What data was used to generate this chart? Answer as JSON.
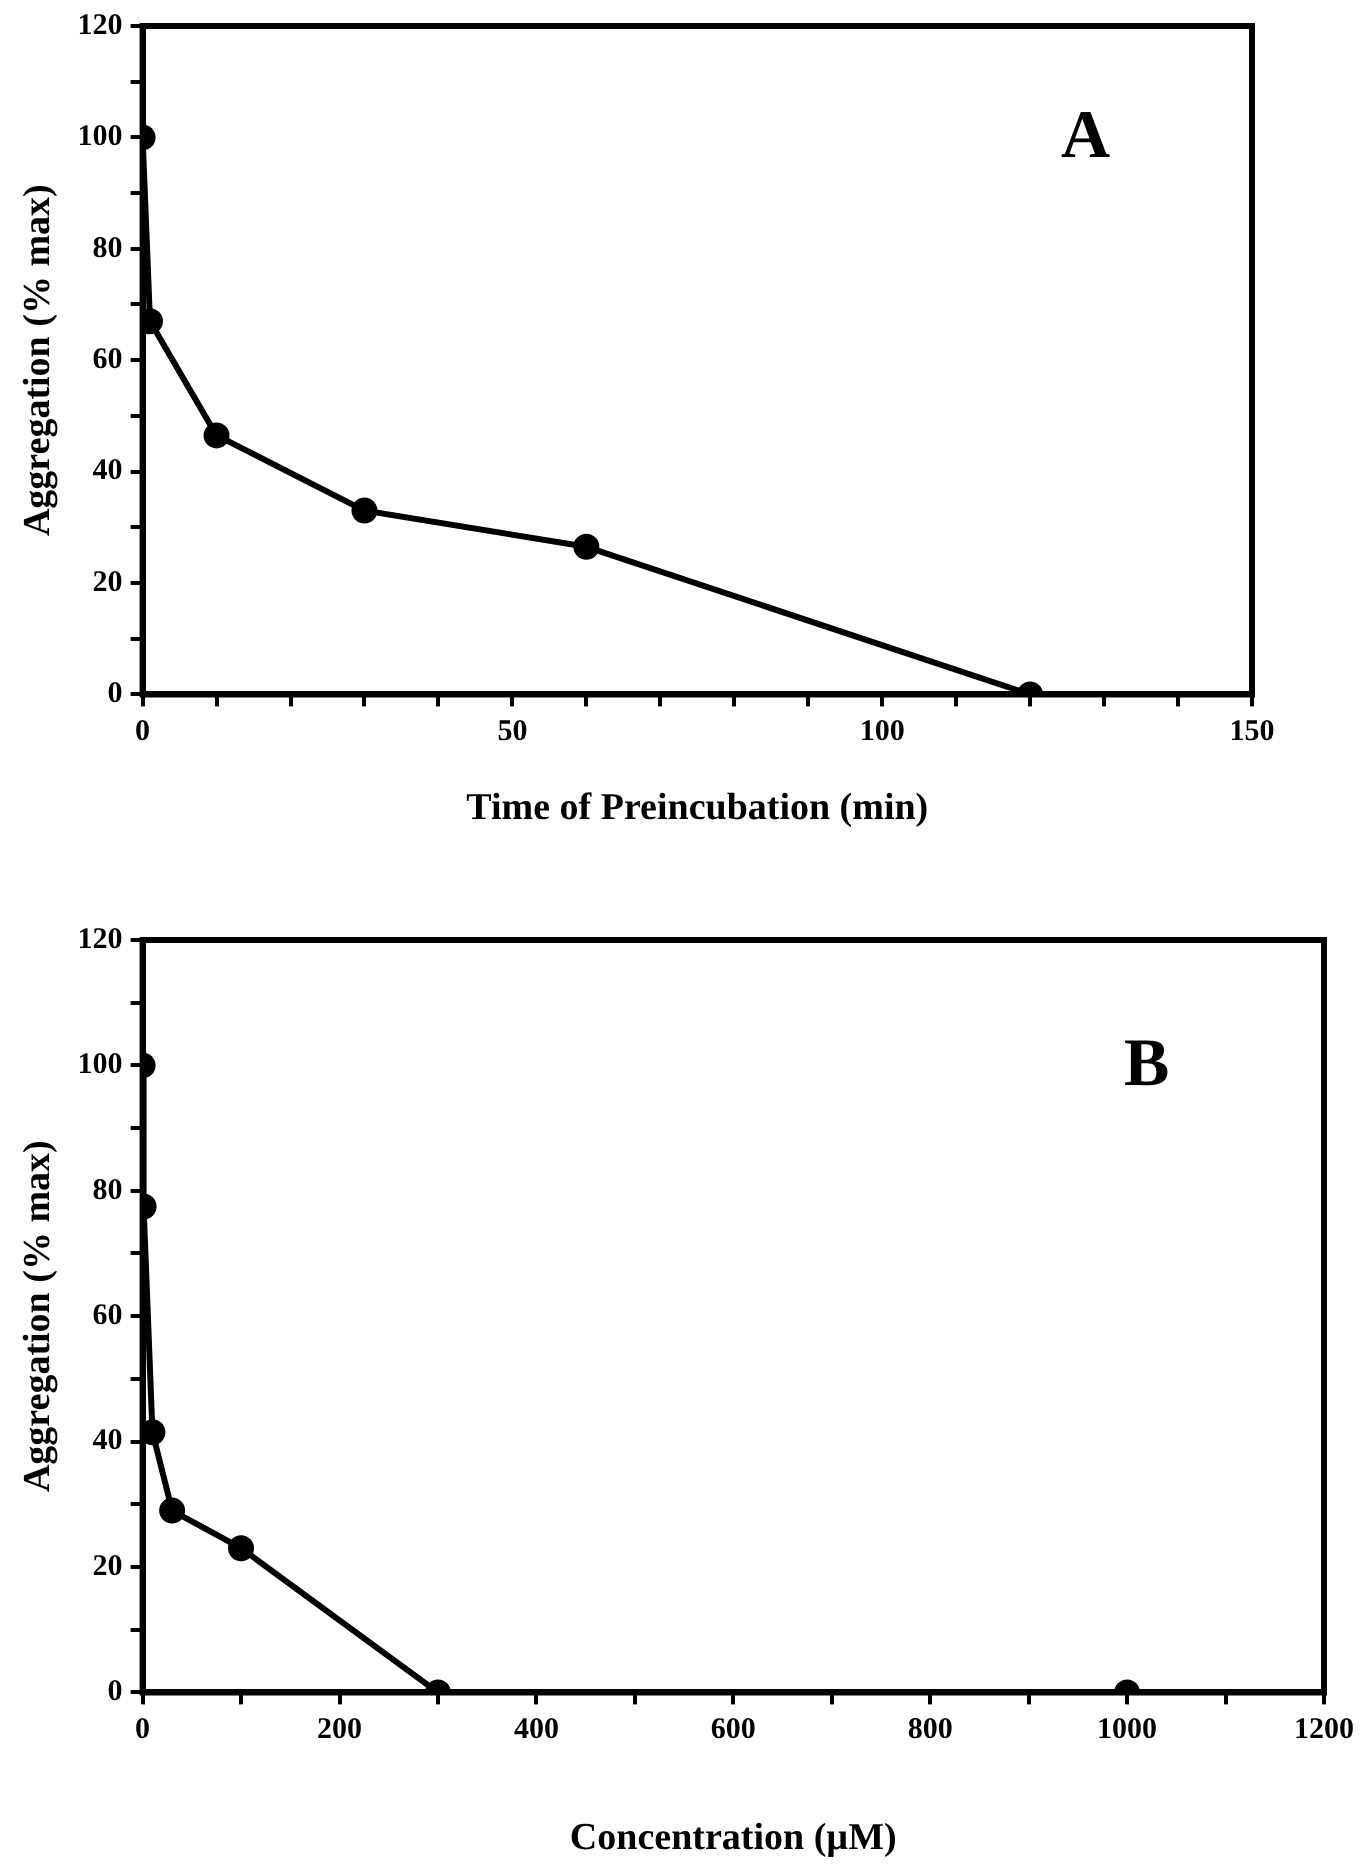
{
  "chart_data": [
    {
      "type": "line",
      "xlabel": "Time of Preincubation (min)",
      "ylabel": "Aggregation (% max)",
      "annotations": [
        "A"
      ],
      "x": [
        0,
        1,
        10,
        30,
        60,
        120
      ],
      "series": [
        {
          "color": "#000000",
          "values": [
            100,
            67,
            46.5,
            33,
            26.5,
            0
          ]
        }
      ],
      "xlim": [
        0,
        150
      ],
      "xticks": [
        0,
        {
          "value": 10,
          "label": null
        },
        {
          "value": 20,
          "label": null
        },
        {
          "value": 30,
          "label": null
        },
        {
          "value": 40,
          "label": null
        },
        50,
        {
          "value": 60,
          "label": null
        },
        {
          "value": 70,
          "label": null
        },
        {
          "value": 80,
          "label": null
        },
        {
          "value": 90,
          "label": null
        },
        100,
        {
          "value": 110,
          "label": null
        },
        {
          "value": 120,
          "label": null
        },
        {
          "value": 130,
          "label": null
        },
        {
          "value": 140,
          "label": null
        },
        150
      ],
      "ylim": [
        0,
        120
      ],
      "yticks": [
        0,
        {
          "value": 10,
          "label": null
        },
        20,
        {
          "value": 30,
          "label": null
        },
        40,
        {
          "value": 50,
          "label": null
        },
        60,
        {
          "value": 70,
          "label": null
        },
        80,
        {
          "value": 90,
          "label": null
        },
        100,
        {
          "value": 110,
          "label": null
        },
        120
      ],
      "grid": false,
      "legend": false,
      "marker": "circle",
      "line_style": "solid"
    },
    {
      "type": "line",
      "xlabel": "Concentration (µM)",
      "ylabel": "Aggregation (% max)",
      "annotations": [
        "B"
      ],
      "x": [
        0,
        1,
        10,
        30,
        100,
        300,
        1000
      ],
      "series": [
        {
          "color": "#000000",
          "values": [
            100,
            77.5,
            41.5,
            29,
            23,
            0,
            0
          ]
        }
      ],
      "xlim": [
        0,
        1200
      ],
      "xticks": [
        0,
        {
          "value": 100,
          "label": null
        },
        200,
        {
          "value": 300,
          "label": null
        },
        400,
        {
          "value": 500,
          "label": null
        },
        600,
        {
          "value": 700,
          "label": null
        },
        800,
        {
          "value": 900,
          "label": null
        },
        1000,
        {
          "value": 1100,
          "label": null
        },
        1200
      ],
      "ylim": [
        0,
        120
      ],
      "yticks": [
        0,
        {
          "value": 10,
          "label": null
        },
        20,
        {
          "value": 30,
          "label": null
        },
        40,
        {
          "value": 50,
          "label": null
        },
        60,
        {
          "value": 70,
          "label": null
        },
        80,
        {
          "value": 90,
          "label": null
        },
        100,
        {
          "value": 110,
          "label": null
        },
        120
      ],
      "grid": false,
      "legend": false,
      "marker": "circle",
      "line_style": "solid"
    }
  ]
}
